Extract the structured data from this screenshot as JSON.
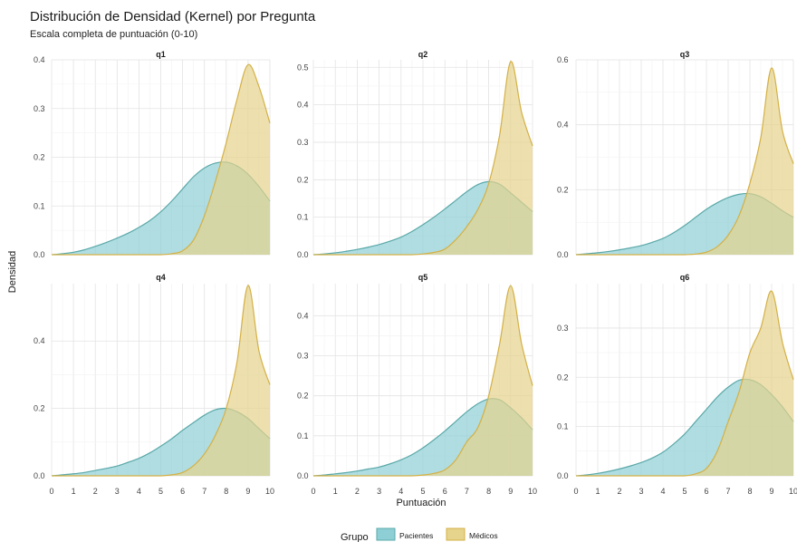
{
  "chart_data": {
    "type": "area",
    "title": "Distribución de Densidad (Kernel) por Pregunta",
    "subtitle": "Escala completa de puntuación (0-10)",
    "xlabel": "Puntuación",
    "ylabel": "Densidad",
    "xlim": [
      0,
      10
    ],
    "x_ticks": [
      0,
      1,
      2,
      3,
      4,
      5,
      6,
      7,
      8,
      9,
      10
    ],
    "x": [
      0,
      0.5,
      1,
      1.5,
      2,
      2.5,
      3,
      3.5,
      4,
      4.5,
      5,
      5.5,
      6,
      6.5,
      7,
      7.5,
      8,
      8.5,
      9,
      9.5,
      10
    ],
    "grid": true,
    "legend": {
      "title": "Grupo",
      "position": "bottom",
      "entries": [
        {
          "name": "Pacientes",
          "color": "#8ecfd6"
        },
        {
          "name": "Médicos",
          "color": "#e6d38c"
        }
      ]
    },
    "series_colors": {
      "Pacientes": {
        "fill": "#8ecfd6",
        "line": "#5aa8a8"
      },
      "Médicos": {
        "fill": "#e6d38c",
        "line": "#d4b045"
      }
    },
    "facets": [
      {
        "title": "q1",
        "ylim": [
          0,
          0.4
        ],
        "y_ticks": [
          "0.0",
          "0.1",
          "0.2",
          "0.3",
          "0.4"
        ],
        "series": [
          {
            "name": "Pacientes",
            "values": [
              0,
              0.002,
              0.005,
              0.01,
              0.017,
              0.025,
              0.034,
              0.044,
              0.056,
              0.07,
              0.088,
              0.11,
              0.135,
              0.16,
              0.178,
              0.188,
              0.19,
              0.182,
              0.165,
              0.14,
              0.11
            ]
          },
          {
            "name": "Médicos",
            "values": [
              0,
              0,
              0,
              0,
              0,
              0,
              0,
              0,
              0,
              0,
              0,
              0.002,
              0.008,
              0.03,
              0.08,
              0.15,
              0.23,
              0.32,
              0.39,
              0.345,
              0.27
            ]
          }
        ]
      },
      {
        "title": "q2",
        "ylim": [
          0,
          0.52
        ],
        "y_ticks": [
          "0.0",
          "0.1",
          "0.2",
          "0.3",
          "0.4",
          "0.5"
        ],
        "series": [
          {
            "name": "Pacientes",
            "values": [
              0,
              0.002,
              0.005,
              0.009,
              0.014,
              0.02,
              0.027,
              0.036,
              0.047,
              0.062,
              0.08,
              0.1,
              0.122,
              0.145,
              0.168,
              0.187,
              0.195,
              0.188,
              0.165,
              0.14,
              0.115
            ]
          },
          {
            "name": "Médicos",
            "values": [
              0,
              0,
              0,
              0,
              0,
              0,
              0,
              0,
              0,
              0,
              0.002,
              0.006,
              0.015,
              0.04,
              0.075,
              0.12,
              0.19,
              0.32,
              0.515,
              0.38,
              0.29
            ]
          }
        ]
      },
      {
        "title": "q3",
        "ylim": [
          0,
          0.6
        ],
        "y_ticks": [
          "0.0",
          "0.2",
          "0.4",
          "0.6"
        ],
        "series": [
          {
            "name": "Pacientes",
            "values": [
              0,
              0.003,
              0.006,
              0.01,
              0.015,
              0.021,
              0.028,
              0.038,
              0.05,
              0.068,
              0.09,
              0.115,
              0.14,
              0.16,
              0.176,
              0.186,
              0.188,
              0.178,
              0.158,
              0.135,
              0.115
            ]
          },
          {
            "name": "Médicos",
            "values": [
              0,
              0,
              0,
              0,
              0,
              0,
              0,
              0,
              0,
              0,
              0,
              0.002,
              0.008,
              0.025,
              0.06,
              0.12,
              0.22,
              0.36,
              0.575,
              0.38,
              0.28
            ]
          }
        ]
      },
      {
        "title": "q4",
        "ylim": [
          0,
          0.57
        ],
        "y_ticks": [
          "0.0",
          "0.2",
          "0.4"
        ],
        "series": [
          {
            "name": "Pacientes",
            "values": [
              0,
              0.003,
              0.006,
              0.01,
              0.016,
              0.022,
              0.029,
              0.04,
              0.052,
              0.068,
              0.088,
              0.11,
              0.135,
              0.158,
              0.18,
              0.196,
              0.2,
              0.19,
              0.17,
              0.14,
              0.11
            ]
          },
          {
            "name": "Médicos",
            "values": [
              0,
              0,
              0,
              0,
              0,
              0,
              0,
              0,
              0,
              0,
              0,
              0.003,
              0.01,
              0.03,
              0.065,
              0.12,
              0.2,
              0.34,
              0.565,
              0.37,
              0.27
            ]
          }
        ]
      },
      {
        "title": "q5",
        "ylim": [
          0,
          0.48
        ],
        "y_ticks": [
          "0.0",
          "0.1",
          "0.2",
          "0.3",
          "0.4"
        ],
        "series": [
          {
            "name": "Pacientes",
            "values": [
              0,
              0.002,
              0.005,
              0.008,
              0.012,
              0.017,
              0.022,
              0.03,
              0.04,
              0.053,
              0.07,
              0.09,
              0.112,
              0.136,
              0.16,
              0.18,
              0.192,
              0.19,
              0.17,
              0.145,
              0.115
            ]
          },
          {
            "name": "Médicos",
            "values": [
              0,
              0,
              0,
              0,
              0,
              0,
              0,
              0,
              0,
              0,
              0.002,
              0.006,
              0.015,
              0.04,
              0.085,
              0.12,
              0.2,
              0.33,
              0.475,
              0.33,
              0.225
            ]
          }
        ]
      },
      {
        "title": "q6",
        "ylim": [
          0,
          0.39
        ],
        "y_ticks": [
          "0.0",
          "0.1",
          "0.2",
          "0.3"
        ],
        "series": [
          {
            "name": "Pacientes",
            "values": [
              0,
              0.002,
              0.005,
              0.009,
              0.014,
              0.02,
              0.027,
              0.036,
              0.048,
              0.065,
              0.085,
              0.11,
              0.135,
              0.16,
              0.18,
              0.194,
              0.195,
              0.185,
              0.165,
              0.14,
              0.11
            ]
          },
          {
            "name": "Médicos",
            "values": [
              0,
              0,
              0,
              0,
              0,
              0,
              0,
              0,
              0,
              0,
              0,
              0.004,
              0.015,
              0.05,
              0.11,
              0.17,
              0.25,
              0.3,
              0.375,
              0.27,
              0.195
            ]
          }
        ]
      }
    ]
  }
}
